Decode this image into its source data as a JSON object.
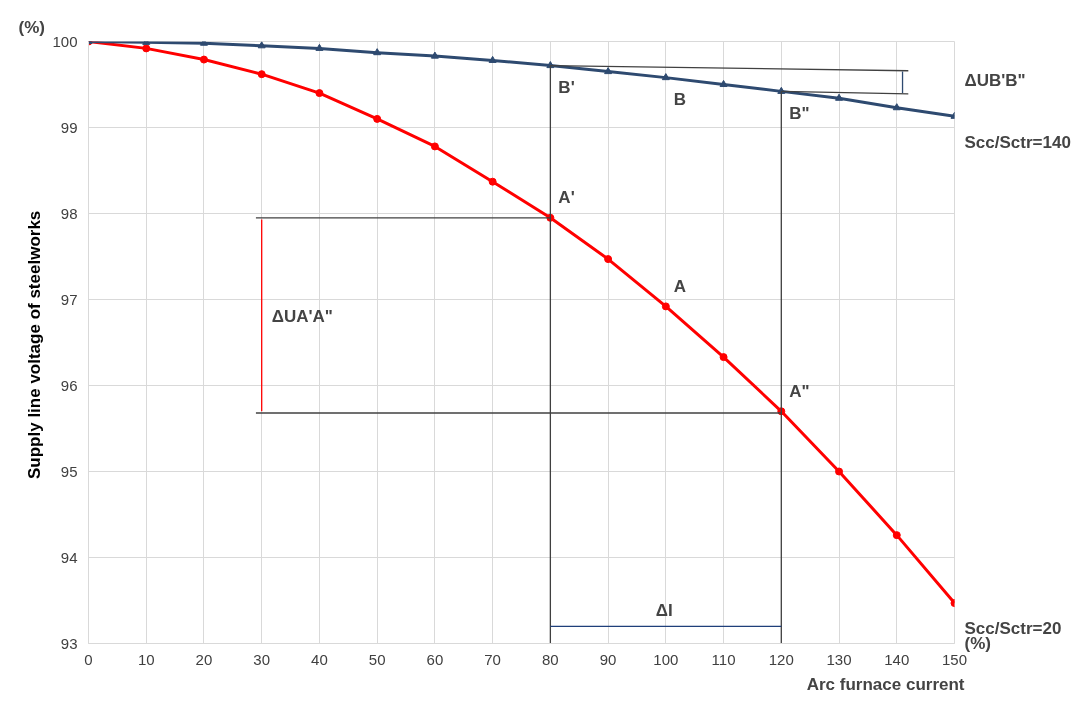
{
  "chart_data": {
    "type": "line",
    "xlabel": "Arc furnace current",
    "ylabel": "Supply line voltage of  steelworks",
    "xlim": [
      0,
      150
    ],
    "ylim": [
      93,
      100
    ],
    "xticks": [
      0,
      10,
      20,
      30,
      40,
      50,
      60,
      70,
      80,
      90,
      100,
      110,
      120,
      130,
      140,
      150
    ],
    "yticks": [
      93,
      94,
      95,
      96,
      97,
      98,
      99,
      100
    ],
    "grid": true,
    "series": [
      {
        "name": "Scc/Sctr=20",
        "color": "#ff0000",
        "marker": "circle",
        "x": [
          0,
          10,
          20,
          30,
          40,
          50,
          60,
          70,
          80,
          90,
          100,
          110,
          120,
          130,
          140,
          150
        ],
        "values": [
          100,
          99.92,
          99.79,
          99.62,
          99.4,
          99.1,
          98.78,
          98.37,
          97.95,
          97.47,
          96.92,
          96.33,
          95.7,
          95.0,
          94.26,
          93.47
        ]
      },
      {
        "name": "Scc/Sctr=140",
        "color": "#2e4a70",
        "marker": "triangle",
        "x": [
          0,
          10,
          20,
          30,
          40,
          50,
          60,
          70,
          80,
          90,
          100,
          110,
          120,
          130,
          140,
          150
        ],
        "values": [
          100,
          99.99,
          99.98,
          99.95,
          99.92,
          99.87,
          99.83,
          99.78,
          99.72,
          99.65,
          99.58,
          99.5,
          99.42,
          99.34,
          99.23,
          99.13
        ]
      },
      {
        "color": "#404040",
        "marker": "none",
        "x": [
          80,
          80
        ],
        "values": [
          93,
          99.72
        ]
      },
      {
        "color": "#404040",
        "marker": "none",
        "x": [
          120,
          120
        ],
        "values": [
          93,
          99.42
        ]
      },
      {
        "color": "#404040",
        "marker": "none",
        "x": [
          29,
          80
        ],
        "values": [
          97.95,
          97.95
        ]
      },
      {
        "color": "#404040",
        "marker": "none",
        "x": [
          29,
          120
        ],
        "values": [
          95.68,
          95.68
        ]
      },
      {
        "color": "#404040",
        "marker": "none",
        "x": [
          80,
          142
        ],
        "values": [
          99.72,
          99.66
        ]
      },
      {
        "color": "#404040",
        "marker": "none",
        "x": [
          120,
          142
        ],
        "values": [
          99.42,
          99.39
        ]
      },
      {
        "color": "#ff0000",
        "marker": "none",
        "x": [
          30,
          30
        ],
        "values": [
          97.93,
          95.7
        ]
      },
      {
        "color": "#2e4a70",
        "marker": "none",
        "x": [
          141,
          141
        ],
        "values": [
          99.65,
          99.4
        ]
      },
      {
        "color": "#1f3f7a",
        "marker": "none",
        "x": [
          80,
          120
        ],
        "values": [
          93.2,
          93.2
        ]
      }
    ],
    "annotations": [
      "(%)",
      "(%)",
      {
        "text": "A'",
        "x": 80,
        "y": 97.95
      },
      {
        "text": "A",
        "x": 100,
        "y": 96.92
      },
      {
        "text": "A\"",
        "x": 120,
        "y": 95.7
      },
      {
        "text": "B'",
        "x": 80,
        "y": 99.72
      },
      {
        "text": "B",
        "x": 100,
        "y": 99.58
      },
      {
        "text": "B\"",
        "x": 120,
        "y": 99.42
      },
      {
        "text": "ΔUA'A\"",
        "x": 30,
        "y": 96.8
      },
      "ΔUB'B\"",
      {
        "text": "ΔI",
        "x": 100,
        "y": 93.2
      }
    ]
  }
}
